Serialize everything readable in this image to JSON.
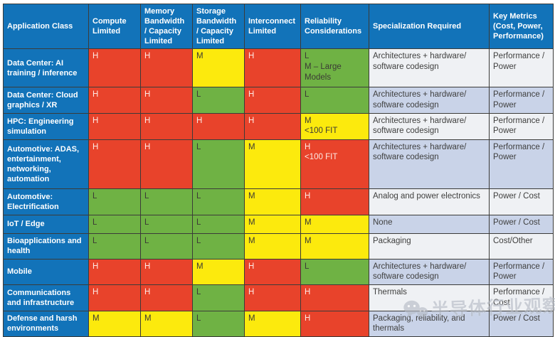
{
  "colors": {
    "header_blue": "#1273b9",
    "high": "#e8432b",
    "medium": "#fcea0d",
    "low": "#6fb244",
    "row_light": "#eff1f4",
    "row_blue": "#c9d3e8",
    "border": "#3b3b39"
  },
  "table": {
    "headers": [
      "Application Class",
      "Compute Limited",
      "Memory Bandwidth / Capacity Limited",
      "Storage Bandwidth / Capacity Limited",
      "Interconnect Limited",
      "Reliability Considerations",
      "Specialization Required",
      "Key Metrics (Cost, Power, Performance)"
    ],
    "rows": [
      {
        "label": "Data Center: AI training / inference",
        "ratings": [
          {
            "text": [
              "H"
            ],
            "level": "high"
          },
          {
            "text": [
              "H"
            ],
            "level": "high"
          },
          {
            "text": [
              "M"
            ],
            "level": "medium"
          },
          {
            "text": [
              "H"
            ],
            "level": "high"
          },
          {
            "text": [
              "L",
              "M – Large",
              "Models"
            ],
            "level": "low"
          }
        ],
        "specialization": "Architectures + hardware/ software codesign",
        "key_metrics": "Performance / Power",
        "shade": "light"
      },
      {
        "label": "Data Center: Cloud graphics / XR",
        "ratings": [
          {
            "text": [
              "H"
            ],
            "level": "high"
          },
          {
            "text": [
              "H"
            ],
            "level": "high"
          },
          {
            "text": [
              "L"
            ],
            "level": "low"
          },
          {
            "text": [
              "H"
            ],
            "level": "high"
          },
          {
            "text": [
              "L"
            ],
            "level": "low"
          }
        ],
        "specialization": "Architectures + hardware/ software codesign",
        "key_metrics": "Performance / Power",
        "shade": "blue"
      },
      {
        "label": "HPC: Engineering simulation",
        "ratings": [
          {
            "text": [
              "H"
            ],
            "level": "high"
          },
          {
            "text": [
              "H"
            ],
            "level": "high"
          },
          {
            "text": [
              "H"
            ],
            "level": "high"
          },
          {
            "text": [
              "H"
            ],
            "level": "high"
          },
          {
            "text": [
              "M",
              "<100 FIT"
            ],
            "level": "medium"
          }
        ],
        "specialization": "Architectures + hardware/ software codesign",
        "key_metrics": "Performance / Power",
        "shade": "light"
      },
      {
        "label": "Automotive: ADAS, entertainment, networking, automation",
        "ratings": [
          {
            "text": [
              "H"
            ],
            "level": "high"
          },
          {
            "text": [
              "H"
            ],
            "level": "high"
          },
          {
            "text": [
              "L"
            ],
            "level": "low"
          },
          {
            "text": [
              "M"
            ],
            "level": "medium"
          },
          {
            "text": [
              "H",
              "<100 FIT"
            ],
            "level": "high"
          }
        ],
        "specialization": "Architectures + hardware/ software codesign",
        "key_metrics": "Performance / Power",
        "shade": "blue"
      },
      {
        "label": "Automotive: Electrification",
        "ratings": [
          {
            "text": [
              "L"
            ],
            "level": "low"
          },
          {
            "text": [
              "L"
            ],
            "level": "low"
          },
          {
            "text": [
              "L"
            ],
            "level": "low"
          },
          {
            "text": [
              "M"
            ],
            "level": "medium"
          },
          {
            "text": [
              "H"
            ],
            "level": "high"
          }
        ],
        "specialization": "Analog and power electronics",
        "key_metrics": "Power / Cost",
        "shade": "light"
      },
      {
        "label": "IoT / Edge",
        "ratings": [
          {
            "text": [
              "L"
            ],
            "level": "low"
          },
          {
            "text": [
              "L"
            ],
            "level": "low"
          },
          {
            "text": [
              "L"
            ],
            "level": "low"
          },
          {
            "text": [
              "M"
            ],
            "level": "medium"
          },
          {
            "text": [
              "M"
            ],
            "level": "medium"
          }
        ],
        "specialization": "None",
        "key_metrics": "Power / Cost",
        "shade": "blue"
      },
      {
        "label": "Bioapplications and health",
        "ratings": [
          {
            "text": [
              "L"
            ],
            "level": "low"
          },
          {
            "text": [
              "L"
            ],
            "level": "low"
          },
          {
            "text": [
              "L"
            ],
            "level": "low"
          },
          {
            "text": [
              "M"
            ],
            "level": "medium"
          },
          {
            "text": [
              "M"
            ],
            "level": "medium"
          }
        ],
        "specialization": "Packaging",
        "key_metrics": "Cost/Other",
        "shade": "light"
      },
      {
        "label": "Mobile",
        "ratings": [
          {
            "text": [
              "H"
            ],
            "level": "high"
          },
          {
            "text": [
              "H"
            ],
            "level": "high"
          },
          {
            "text": [
              "M"
            ],
            "level": "medium"
          },
          {
            "text": [
              "H"
            ],
            "level": "high"
          },
          {
            "text": [
              "L"
            ],
            "level": "low"
          }
        ],
        "specialization": "Architectures + hardware/ software codesign",
        "key_metrics": "Performance / Power",
        "shade": "blue"
      },
      {
        "label": "Communications and infrastructure",
        "ratings": [
          {
            "text": [
              "H"
            ],
            "level": "high"
          },
          {
            "text": [
              "H"
            ],
            "level": "high"
          },
          {
            "text": [
              "L"
            ],
            "level": "low"
          },
          {
            "text": [
              "H"
            ],
            "level": "high"
          },
          {
            "text": [
              "H"
            ],
            "level": "high"
          }
        ],
        "specialization": "Thermals",
        "key_metrics": "Performance / Cost",
        "shade": "light"
      },
      {
        "label": "Defense and harsh environments",
        "ratings": [
          {
            "text": [
              "M"
            ],
            "level": "medium"
          },
          {
            "text": [
              "M"
            ],
            "level": "medium"
          },
          {
            "text": [
              "L"
            ],
            "level": "low"
          },
          {
            "text": [
              "M"
            ],
            "level": "medium"
          },
          {
            "text": [
              "H"
            ],
            "level": "high"
          }
        ],
        "specialization": "Packaging, reliability, and thermals",
        "key_metrics": "Power / Cost",
        "shade": "blue"
      }
    ]
  },
  "watermark": {
    "text": "半导体行业观察"
  }
}
